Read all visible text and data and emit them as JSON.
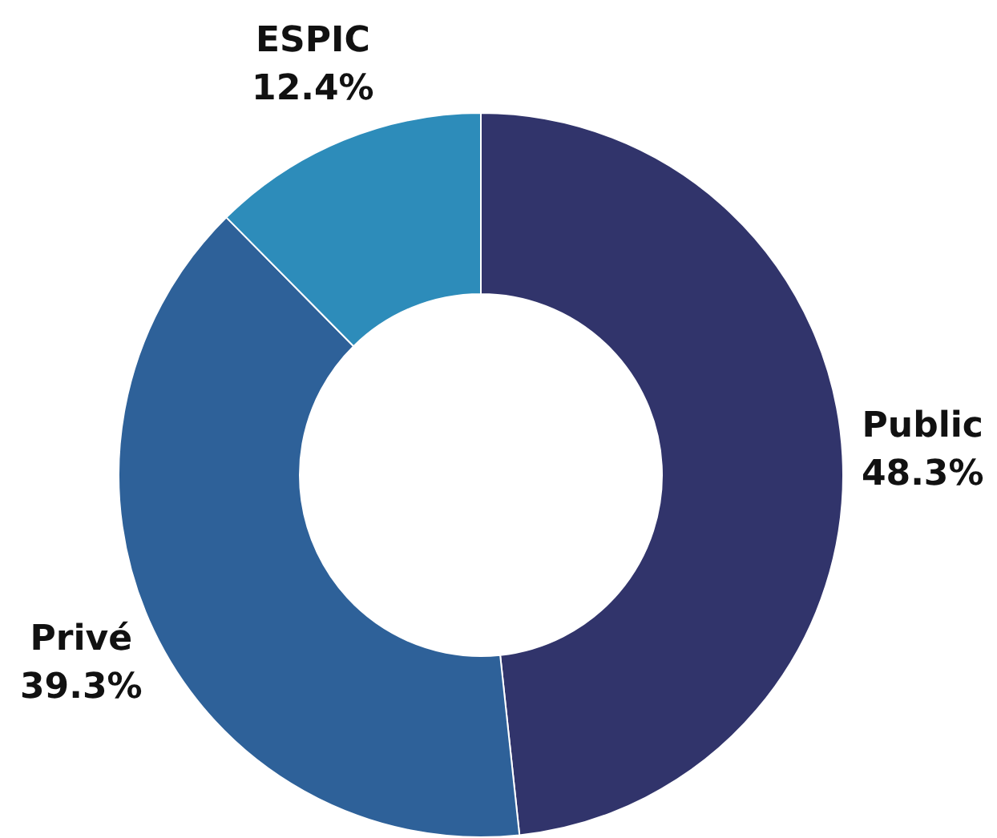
{
  "chart_data": {
    "type": "donut",
    "categories": [
      "Public",
      "Privé",
      "ESPIC"
    ],
    "values": [
      48.3,
      39.3,
      12.4
    ],
    "colors": [
      "#31346b",
      "#2e6199",
      "#2d8cba"
    ],
    "value_labels": [
      "48.3%",
      "39.3%",
      "12.4%"
    ],
    "legend": false
  }
}
